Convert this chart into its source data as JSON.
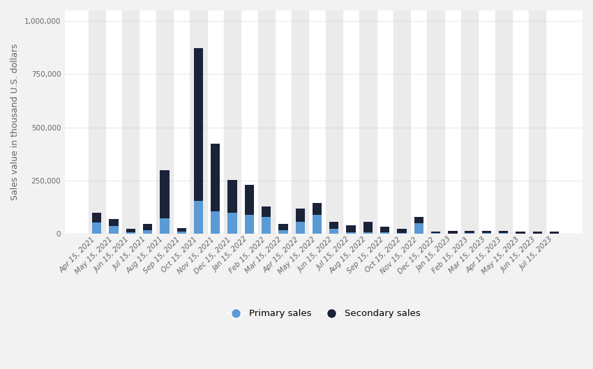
{
  "categories": [
    "Apr 15, 2021",
    "May 15, 2021",
    "Jun 15, 2021",
    "Jul 15, 2021",
    "Aug 15, 2021",
    "Sep 15, 2021",
    "Oct 15, 2021",
    "Nov 15, 2021",
    "Dec 15, 2021",
    "Jan 15, 2022",
    "Feb 15, 2022",
    "Mar 15, 2022",
    "Apr 15, 2022",
    "May 15, 2022",
    "Jun 15, 2022",
    "Jul 15, 2022",
    "Aug 15, 2022",
    "Sep 15, 2022",
    "Oct 15, 2022",
    "Nov 15, 2022",
    "Dec 15, 2022",
    "Jan 15, 2023",
    "Feb 15, 2023",
    "Mar 15, 2023",
    "Apr 15, 2023",
    "May 15, 2023",
    "Jun 15, 2023",
    "Jul 15, 2023"
  ],
  "primary_sales": [
    52000,
    38000,
    8000,
    18000,
    72000,
    10000,
    155000,
    105000,
    100000,
    90000,
    80000,
    18000,
    55000,
    90000,
    25000,
    7000,
    8000,
    6000,
    5000,
    50000,
    3000,
    2000,
    3000,
    3000,
    3000,
    2000,
    2000,
    2000
  ],
  "secondary_sales": [
    48000,
    32000,
    17000,
    30000,
    228000,
    17000,
    718000,
    318000,
    152000,
    140000,
    50000,
    30000,
    65000,
    55000,
    32000,
    32000,
    47000,
    27000,
    20000,
    28000,
    6000,
    11000,
    10000,
    10000,
    10000,
    10000,
    8000,
    9000
  ],
  "primary_color": "#5b9bd5",
  "secondary_color": "#1b2338",
  "fig_background": "#f2f2f2",
  "plot_background": "#ffffff",
  "shade_color": "#ebebeb",
  "grid_color": "#c8c8c8",
  "ylabel": "Sales value in thousand U.S. dollars",
  "ylim": [
    0,
    1050000
  ],
  "yticks": [
    0,
    250000,
    500000,
    750000,
    1000000
  ],
  "legend_primary": "Primary sales",
  "legend_secondary": "Secondary sales",
  "tick_fontsize": 7.5,
  "ylabel_fontsize": 9.0,
  "legend_fontsize": 9.5
}
